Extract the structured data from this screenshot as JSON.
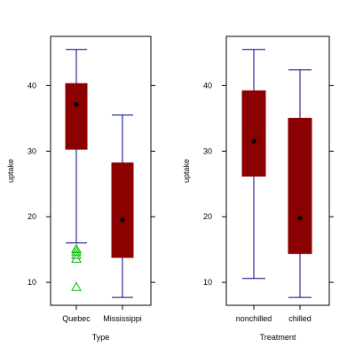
{
  "chart_data": [
    {
      "type": "box",
      "xlabel": "Type",
      "ylabel": "uptake",
      "ylim": [
        6.5,
        47.5
      ],
      "yticks": [
        10,
        20,
        30,
        40
      ],
      "grid": false,
      "categories": [
        "Quebec",
        "Mississippi"
      ],
      "boxes": [
        {
          "category": "Quebec",
          "whisker_low": 16.0,
          "q1": 30.3,
          "mean": 37.1,
          "q3": 40.3,
          "whisker_high": 45.5,
          "outliers": [
            9.3,
            13.6,
            14.2,
            14.7,
            15.1
          ]
        },
        {
          "category": "Mississippi",
          "whisker_low": 7.7,
          "q1": 13.8,
          "mean": 19.5,
          "q3": 28.2,
          "whisker_high": 35.5,
          "outliers": []
        }
      ],
      "colors": {
        "box_fill": "#8b0000",
        "whisker": "#00008b",
        "mean_marker": "#000000",
        "outlier": "#00bb00"
      }
    },
    {
      "type": "box",
      "xlabel": "Treatment",
      "ylabel": "uptake",
      "ylim": [
        6.5,
        47.5
      ],
      "yticks": [
        10,
        20,
        30,
        40
      ],
      "grid": false,
      "categories": [
        "nonchilled",
        "chilled"
      ],
      "boxes": [
        {
          "category": "nonchilled",
          "whisker_low": 10.6,
          "q1": 26.2,
          "mean": 31.5,
          "q3": 39.2,
          "whisker_high": 45.5,
          "outliers": []
        },
        {
          "category": "chilled",
          "whisker_low": 7.7,
          "q1": 14.4,
          "mean": 19.8,
          "q3": 35.0,
          "whisker_high": 42.4,
          "outliers": []
        }
      ],
      "colors": {
        "box_fill": "#8b0000",
        "whisker": "#00008b",
        "mean_marker": "#000000",
        "outlier": "#00bb00"
      }
    }
  ]
}
